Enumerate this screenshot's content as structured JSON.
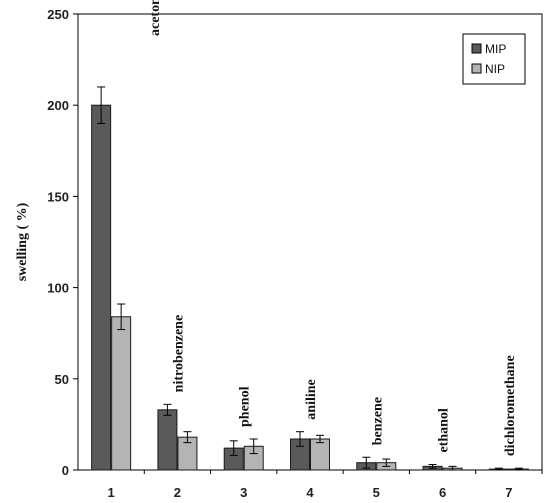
{
  "chart_data": {
    "type": "bar",
    "ylabel": "swelling ( %)",
    "xlabel": "",
    "ylim": [
      0,
      250
    ],
    "yticks": [
      0,
      50,
      100,
      150,
      200,
      250
    ],
    "categories": [
      "1",
      "2",
      "3",
      "4",
      "5",
      "6",
      "7"
    ],
    "solvents": [
      "acetonitrile",
      "nitrobenzene",
      "phenol",
      "aniline",
      "benzene",
      "ethanol",
      "dichloromethane"
    ],
    "series": [
      {
        "name": "MIP",
        "color": "#5a5a5a",
        "values": [
          200,
          33,
          12,
          17,
          4,
          2,
          0.5
        ],
        "errors": [
          10,
          3,
          4,
          4,
          3,
          1,
          0.5
        ]
      },
      {
        "name": "NIP",
        "color": "#b4b4b4",
        "values": [
          84,
          18,
          13,
          17,
          4,
          1,
          0.5
        ],
        "errors": [
          7,
          3,
          4,
          2,
          2,
          1,
          0.5
        ]
      }
    ],
    "legend_position": "top-right",
    "grid": false
  }
}
